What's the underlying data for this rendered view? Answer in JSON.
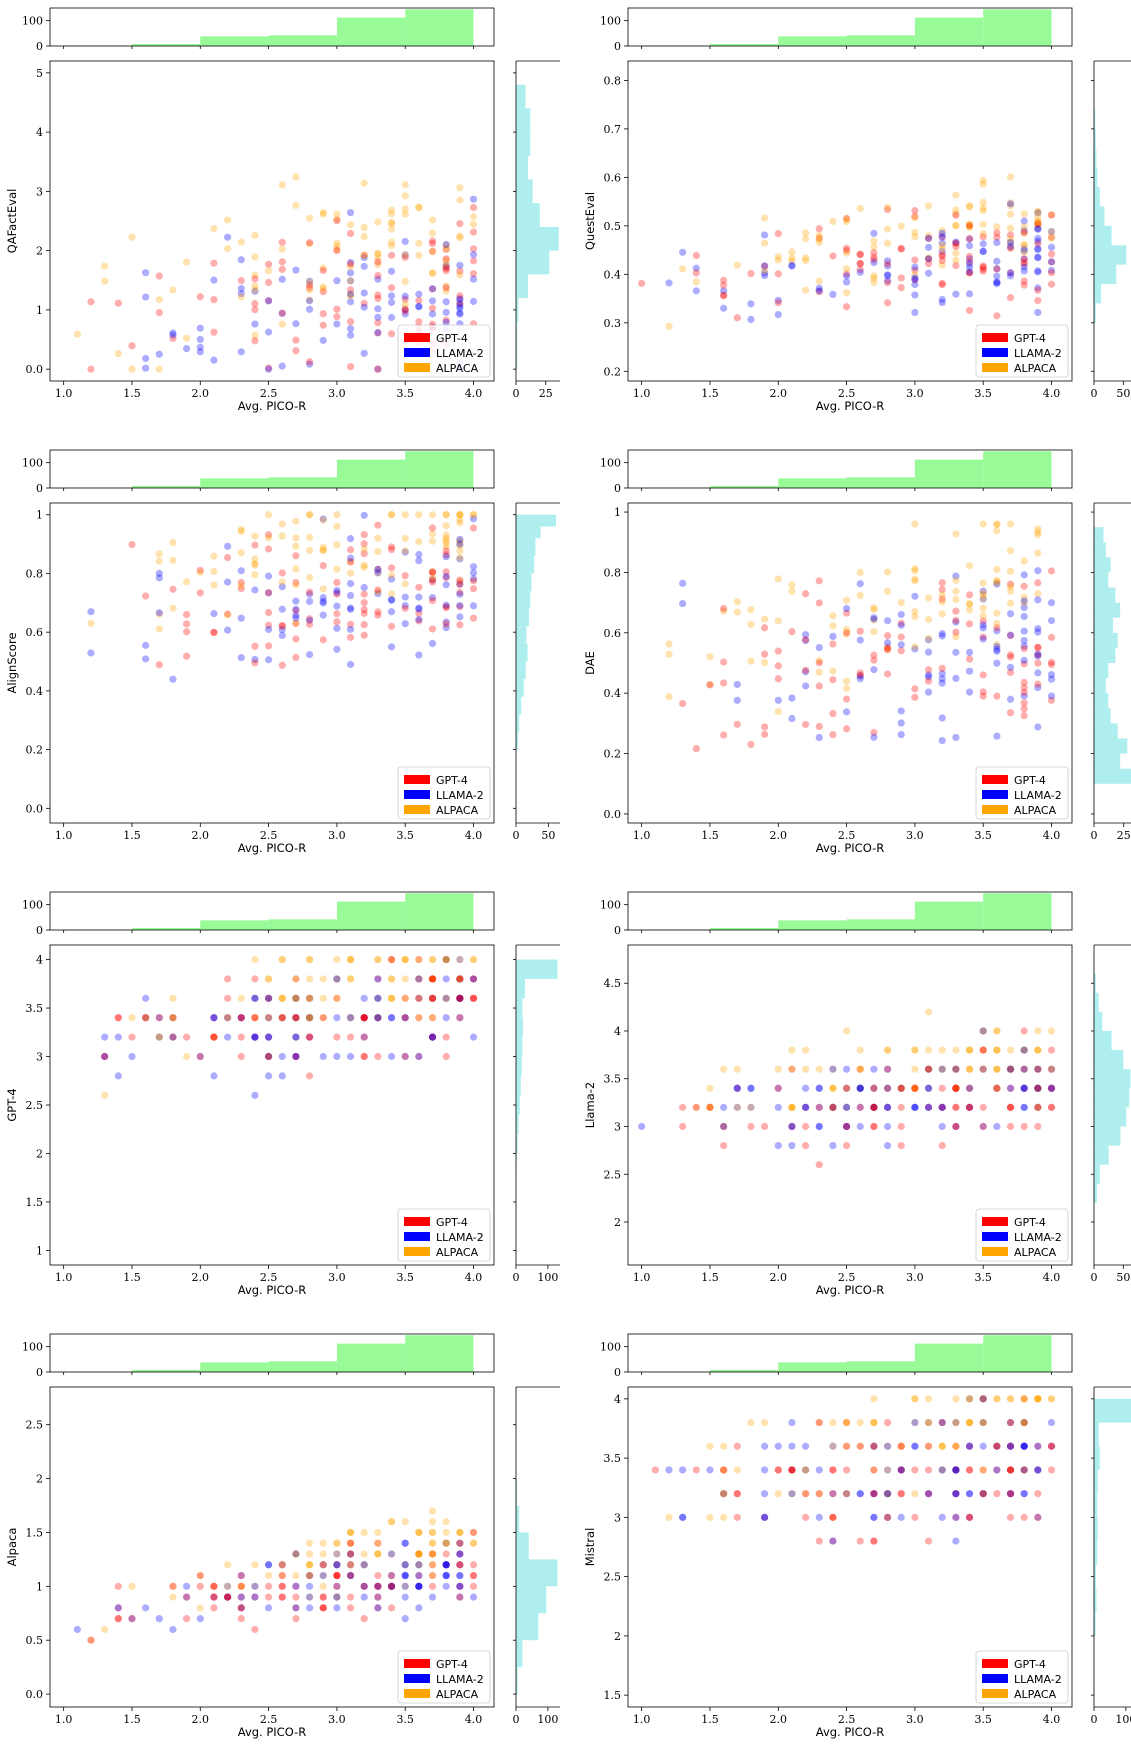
{
  "chart_data": [
    {
      "type": "scatter",
      "xlabel": "Avg. PICO-R",
      "ylabel": "QAFactEval",
      "xlim": [
        0.9,
        4.15
      ],
      "ylim": [
        -0.2,
        5.2
      ],
      "yticks": [
        0,
        1,
        2,
        3,
        4,
        5
      ],
      "xticks": [
        1.0,
        1.5,
        2.0,
        2.5,
        3.0,
        3.5,
        4.0
      ],
      "top_hist": {
        "ylim": [
          0,
          150
        ],
        "yticks": [
          0,
          100
        ],
        "edges": [
          1.0,
          1.5,
          2.0,
          2.5,
          3.0,
          3.5,
          4.0
        ],
        "counts": [
          2,
          8,
          38,
          42,
          112,
          145
        ]
      },
      "right_hist": {
        "xlim": [
          0,
          37
        ],
        "xticks": [
          0,
          25
        ],
        "bins": [
          [
            0.0,
            0.4,
            1
          ],
          [
            0.4,
            0.8,
            1
          ],
          [
            0.8,
            1.2,
            2
          ],
          [
            1.2,
            1.6,
            10
          ],
          [
            1.6,
            2.0,
            28
          ],
          [
            2.0,
            2.4,
            36
          ],
          [
            2.4,
            2.8,
            20
          ],
          [
            2.8,
            3.2,
            14
          ],
          [
            3.2,
            3.6,
            10
          ],
          [
            3.6,
            4.0,
            12
          ],
          [
            4.0,
            4.4,
            12
          ],
          [
            4.4,
            4.8,
            8
          ]
        ]
      },
      "ymin": 0,
      "ymax": 4.8,
      "curve": 1.0,
      "scatter_spread": 1.2
    },
    {
      "type": "scatter",
      "xlabel": "Avg. PICO-R",
      "ylabel": "QuestEval",
      "xlim": [
        0.9,
        4.15
      ],
      "ylim": [
        0.18,
        0.84
      ],
      "yticks": [
        0.2,
        0.3,
        0.4,
        0.5,
        0.6,
        0.7,
        0.8
      ],
      "xticks": [
        1.0,
        1.5,
        2.0,
        2.5,
        3.0,
        3.5,
        4.0
      ],
      "top_hist": {
        "ylim": [
          0,
          150
        ],
        "yticks": [
          0,
          100
        ],
        "edges": [
          1.0,
          1.5,
          2.0,
          2.5,
          3.0,
          3.5,
          4.0
        ],
        "counts": [
          2,
          8,
          38,
          42,
          112,
          145
        ]
      },
      "right_hist": {
        "xlim": [
          0,
          75
        ],
        "xticks": [
          0,
          50
        ],
        "bins": [
          [
            0.3,
            0.34,
            3
          ],
          [
            0.34,
            0.38,
            12
          ],
          [
            0.38,
            0.42,
            38
          ],
          [
            0.42,
            0.46,
            55
          ],
          [
            0.46,
            0.5,
            30
          ],
          [
            0.5,
            0.54,
            18
          ],
          [
            0.54,
            0.58,
            10
          ],
          [
            0.58,
            0.62,
            6
          ],
          [
            0.62,
            0.66,
            4
          ],
          [
            0.66,
            0.7,
            3
          ],
          [
            0.7,
            0.74,
            2
          ]
        ]
      },
      "ymin": 0.24,
      "ymax": 0.73,
      "curve": 0.4,
      "scatter_spread": 0.09
    },
    {
      "type": "scatter",
      "xlabel": "Avg. PICO-R",
      "ylabel": "AlignScore",
      "xlim": [
        0.9,
        4.15
      ],
      "ylim": [
        -0.05,
        1.04
      ],
      "yticks": [
        0.0,
        0.2,
        0.4,
        0.6,
        0.8,
        1.0
      ],
      "xticks": [
        1.0,
        1.5,
        2.0,
        2.5,
        3.0,
        3.5,
        4.0
      ],
      "top_hist": {
        "ylim": [
          0,
          150
        ],
        "yticks": [
          0,
          100
        ],
        "edges": [
          1.0,
          1.5,
          2.0,
          2.5,
          3.0,
          3.5,
          4.0
        ],
        "counts": [
          2,
          8,
          38,
          42,
          112,
          145
        ]
      },
      "right_hist": {
        "xlim": [
          0,
          68
        ],
        "xticks": [
          0,
          50
        ],
        "bins": [
          [
            0.2,
            0.26,
            3
          ],
          [
            0.26,
            0.32,
            5
          ],
          [
            0.32,
            0.38,
            8
          ],
          [
            0.38,
            0.44,
            12
          ],
          [
            0.44,
            0.5,
            15
          ],
          [
            0.5,
            0.56,
            18
          ],
          [
            0.56,
            0.62,
            16
          ],
          [
            0.62,
            0.68,
            20
          ],
          [
            0.68,
            0.74,
            22
          ],
          [
            0.74,
            0.8,
            24
          ],
          [
            0.8,
            0.86,
            28
          ],
          [
            0.86,
            0.92,
            30
          ],
          [
            0.92,
            0.96,
            38
          ],
          [
            0.96,
            1.0,
            62
          ]
        ]
      },
      "ymin": 0.0,
      "ymax": 1.0,
      "curve": 0.7,
      "scatter_spread": 0.2
    },
    {
      "type": "scatter",
      "xlabel": "Avg. PICO-R",
      "ylabel": "DAE",
      "xlim": [
        0.9,
        4.15
      ],
      "ylim": [
        -0.03,
        1.03
      ],
      "yticks": [
        0.0,
        0.2,
        0.4,
        0.6,
        0.8,
        1.0
      ],
      "xticks": [
        1.0,
        1.5,
        2.0,
        2.5,
        3.0,
        3.5,
        4.0
      ],
      "top_hist": {
        "ylim": [
          0,
          150
        ],
        "yticks": [
          0,
          100
        ],
        "edges": [
          1.0,
          1.5,
          2.0,
          2.5,
          3.0,
          3.5,
          4.0
        ],
        "counts": [
          2,
          8,
          38,
          42,
          112,
          145
        ]
      },
      "right_hist": {
        "xlim": [
          0,
          37
        ],
        "xticks": [
          0,
          25
        ],
        "bins": [
          [
            0.1,
            0.15,
            32
          ],
          [
            0.15,
            0.2,
            22
          ],
          [
            0.2,
            0.25,
            28
          ],
          [
            0.25,
            0.3,
            20
          ],
          [
            0.3,
            0.35,
            14
          ],
          [
            0.35,
            0.4,
            12
          ],
          [
            0.4,
            0.45,
            10
          ],
          [
            0.45,
            0.5,
            12
          ],
          [
            0.5,
            0.55,
            18
          ],
          [
            0.55,
            0.6,
            20
          ],
          [
            0.6,
            0.65,
            16
          ],
          [
            0.65,
            0.7,
            22
          ],
          [
            0.7,
            0.75,
            18
          ],
          [
            0.75,
            0.8,
            12
          ],
          [
            0.8,
            0.85,
            14
          ],
          [
            0.85,
            0.9,
            10
          ],
          [
            0.9,
            0.95,
            8
          ]
        ]
      },
      "ymin": 0.0,
      "ymax": 0.96,
      "curve": 0.5,
      "scatter_spread": 0.28
    },
    {
      "type": "scatter",
      "xlabel": "Avg. PICO-R",
      "ylabel": "GPT-4",
      "xlim": [
        0.9,
        4.15
      ],
      "ylim": [
        0.85,
        4.15
      ],
      "yticks": [
        1.0,
        1.5,
        2.0,
        2.5,
        3.0,
        3.5,
        4.0
      ],
      "xticks": [
        1.0,
        1.5,
        2.0,
        2.5,
        3.0,
        3.5,
        4.0
      ],
      "top_hist": {
        "ylim": [
          0,
          150
        ],
        "yticks": [
          0,
          100
        ],
        "edges": [
          1.0,
          1.5,
          2.0,
          2.5,
          3.0,
          3.5,
          4.0
        ],
        "counts": [
          2,
          8,
          38,
          42,
          112,
          145
        ]
      },
      "right_hist": {
        "xlim": [
          0,
          138
        ],
        "xticks": [
          0,
          100
        ],
        "bins": [
          [
            1.8,
            2.0,
            2
          ],
          [
            2.0,
            2.2,
            5
          ],
          [
            2.2,
            2.4,
            8
          ],
          [
            2.4,
            2.6,
            12
          ],
          [
            2.6,
            2.8,
            15
          ],
          [
            2.8,
            3.0,
            18
          ],
          [
            3.0,
            3.2,
            20
          ],
          [
            3.2,
            3.4,
            22
          ],
          [
            3.4,
            3.6,
            20
          ],
          [
            3.6,
            3.8,
            28
          ],
          [
            3.8,
            4.0,
            130
          ]
        ]
      },
      "ymin": 1.0,
      "ymax": 4.0,
      "curve": 3.3,
      "scatter_spread": 0.45,
      "quant": 0.2
    },
    {
      "type": "scatter",
      "xlabel": "Avg. PICO-R",
      "ylabel": "Llama-2",
      "xlim": [
        0.9,
        4.15
      ],
      "ylim": [
        1.55,
        4.9
      ],
      "yticks": [
        2.0,
        2.5,
        3.0,
        3.5,
        4.0,
        4.5
      ],
      "xticks": [
        1.0,
        1.5,
        2.0,
        2.5,
        3.0,
        3.5,
        4.0
      ],
      "top_hist": {
        "ylim": [
          0,
          150
        ],
        "yticks": [
          0,
          100
        ],
        "edges": [
          1.0,
          1.5,
          2.0,
          2.5,
          3.0,
          3.5,
          4.0
        ],
        "counts": [
          2,
          8,
          38,
          42,
          112,
          145
        ]
      },
      "right_hist": {
        "xlim": [
          0,
          75
        ],
        "xticks": [
          0,
          50
        ],
        "bins": [
          [
            2.2,
            2.4,
            5
          ],
          [
            2.4,
            2.6,
            10
          ],
          [
            2.6,
            2.8,
            25
          ],
          [
            2.8,
            3.0,
            45
          ],
          [
            3.0,
            3.2,
            55
          ],
          [
            3.2,
            3.4,
            60
          ],
          [
            3.4,
            3.6,
            62
          ],
          [
            3.6,
            3.8,
            50
          ],
          [
            3.8,
            4.0,
            30
          ],
          [
            4.0,
            4.2,
            14
          ],
          [
            4.2,
            4.4,
            8
          ],
          [
            4.4,
            4.6,
            3
          ]
        ]
      },
      "ymin": 2.2,
      "ymax": 4.6,
      "curve": 3.2,
      "scatter_spread": 0.4,
      "quant": 0.2
    },
    {
      "type": "scatter",
      "xlabel": "Avg. PICO-R",
      "ylabel": "Alpaca",
      "xlim": [
        0.9,
        4.15
      ],
      "ylim": [
        -0.12,
        2.85
      ],
      "yticks": [
        0.0,
        0.5,
        1.0,
        1.5,
        2.0,
        2.5
      ],
      "xticks": [
        1.0,
        1.5,
        2.0,
        2.5,
        3.0,
        3.5,
        4.0
      ],
      "top_hist": {
        "ylim": [
          0,
          150
        ],
        "yticks": [
          0,
          100
        ],
        "edges": [
          1.0,
          1.5,
          2.0,
          2.5,
          3.0,
          3.5,
          4.0
        ],
        "counts": [
          2,
          8,
          38,
          42,
          112,
          145
        ]
      },
      "right_hist": {
        "xlim": [
          0,
          138
        ],
        "xticks": [
          0,
          100
        ],
        "bins": [
          [
            0.0,
            0.25,
            5
          ],
          [
            0.25,
            0.5,
            20
          ],
          [
            0.5,
            0.75,
            70
          ],
          [
            0.75,
            1.0,
            95
          ],
          [
            1.0,
            1.25,
            130
          ],
          [
            1.25,
            1.5,
            40
          ],
          [
            1.5,
            1.75,
            10
          ],
          [
            1.75,
            2.0,
            3
          ]
        ]
      },
      "ymin": 0.2,
      "ymax": 2.7,
      "curve": 0.95,
      "scatter_spread": 0.3,
      "quant": 0.1
    },
    {
      "type": "scatter",
      "xlabel": "Avg. PICO-R",
      "ylabel": "Mistral",
      "xlim": [
        0.9,
        4.15
      ],
      "ylim": [
        1.4,
        4.1
      ],
      "yticks": [
        1.5,
        2.0,
        2.5,
        3.0,
        3.5,
        4.0
      ],
      "xticks": [
        1.0,
        1.5,
        2.0,
        2.5,
        3.0,
        3.5,
        4.0
      ],
      "top_hist": {
        "ylim": [
          0,
          150
        ],
        "yticks": [
          0,
          100
        ],
        "edges": [
          1.0,
          1.5,
          2.0,
          2.5,
          3.0,
          3.5,
          4.0
        ],
        "counts": [
          2,
          8,
          38,
          42,
          112,
          145
        ]
      },
      "right_hist": {
        "xlim": [
          0,
          138
        ],
        "xticks": [
          0,
          100
        ],
        "bins": [
          [
            2.0,
            2.2,
            5
          ],
          [
            2.2,
            2.4,
            8
          ],
          [
            2.4,
            2.6,
            6
          ],
          [
            2.6,
            2.8,
            10
          ],
          [
            2.8,
            3.0,
            12
          ],
          [
            3.0,
            3.2,
            10
          ],
          [
            3.2,
            3.4,
            12
          ],
          [
            3.4,
            3.6,
            18
          ],
          [
            3.6,
            3.8,
            15
          ],
          [
            3.8,
            4.0,
            130
          ]
        ]
      },
      "ymin": 1.6,
      "ymax": 4.0,
      "curve": 3.3,
      "scatter_spread": 0.5,
      "quant": 0.2
    }
  ],
  "legend": {
    "placement": "lower-right",
    "entries": [
      {
        "label": "GPT-4",
        "color": "#ff0000"
      },
      {
        "label": "LLAMA-2",
        "color": "#0000ff"
      },
      {
        "label": "ALPACA",
        "color": "#ffa500"
      }
    ]
  },
  "colors": {
    "top_hist": "#98fb98",
    "right_hist": "#afeeee"
  }
}
